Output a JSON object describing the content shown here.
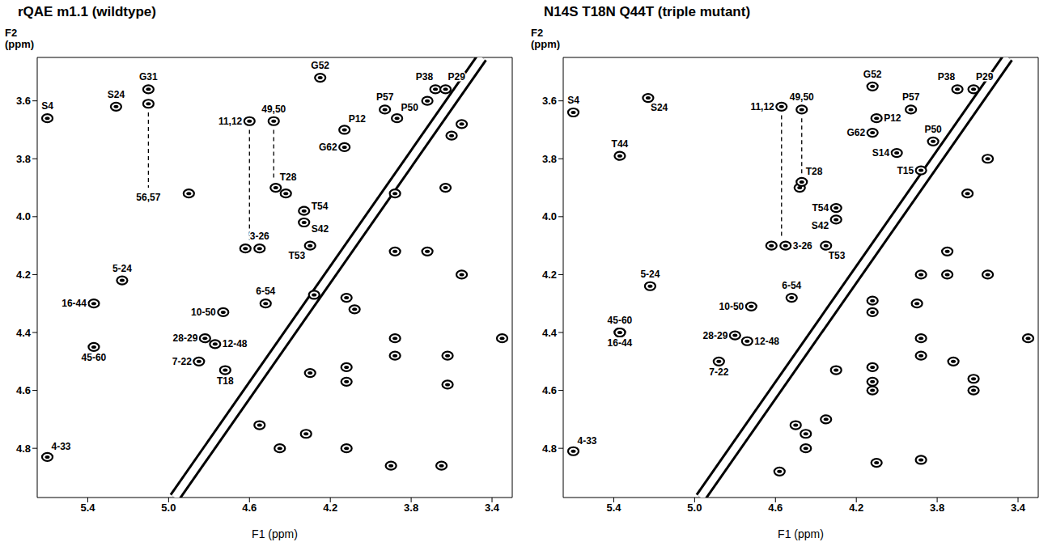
{
  "chart_data": [
    {
      "type": "scatter",
      "title": "rQAE m1.1 (wildtype)",
      "x_label": "F1 (ppm)",
      "y_label": "F2 (ppm)",
      "xlim": [
        5.65,
        3.3
      ],
      "ylim": [
        4.97,
        3.45
      ],
      "xticks": [
        5.4,
        {
          "value": 5,
          "label": "5.0"
        },
        4.6,
        4.2,
        3.8,
        3.4
      ],
      "yticks": [
        3.6,
        3.8,
        {
          "value": 4,
          "label": "4.0"
        },
        4.2,
        4.4,
        4.6,
        4.8
      ],
      "series": [
        {
          "type": "line",
          "line_style": "solid",
          "color": "#000000",
          "x": [
            4.97,
            3.45
          ],
          "y": [
            4.97,
            3.45
          ]
        },
        {
          "type": "line",
          "line_style": "dashed",
          "color": "#000000",
          "x": [
            5.1,
            5.1
          ],
          "y": [
            3.64,
            3.9
          ]
        },
        {
          "type": "line",
          "line_style": "dashed",
          "color": "#000000",
          "x": [
            4.6,
            4.6
          ],
          "y": [
            3.7,
            4.08
          ]
        },
        {
          "type": "line",
          "line_style": "dashed",
          "color": "#000000",
          "x": [
            4.48,
            4.48
          ],
          "y": [
            3.7,
            3.87
          ]
        },
        {
          "type": "scatter",
          "marker": "ellipse",
          "color": "#000000",
          "x": [
            4.9,
            4.42,
            4.28,
            4.12,
            4.08,
            3.88,
            3.88,
            3.62,
            3.62,
            4.3,
            4.12,
            4.12,
            3.88,
            3.72,
            3.55,
            3.88,
            3.6,
            3.55,
            3.63,
            4.55,
            4.45,
            4.32,
            4.12,
            3.9,
            3.65,
            3.35,
            4.62,
            3.72
          ],
          "y": [
            3.92,
            3.92,
            4.27,
            4.28,
            4.32,
            4.42,
            4.48,
            4.48,
            4.58,
            4.54,
            4.52,
            4.57,
            4.12,
            4.12,
            4.2,
            3.92,
            3.72,
            3.68,
            3.9,
            4.72,
            4.8,
            4.75,
            4.8,
            4.86,
            4.86,
            4.42,
            4.11,
            3.6
          ]
        },
        {
          "type": "scatter",
          "marker": "ellipse",
          "color": "#000000",
          "x": [
            5.6,
            5.26,
            5.1,
            5.1,
            4.6,
            4.48,
            4.47,
            4.55,
            4.52,
            4.73,
            4.82,
            4.77,
            4.85,
            4.72,
            5.37,
            5.37,
            5.23,
            5.6,
            4.25,
            4.13,
            4.13,
            4.33,
            4.33,
            4.3,
            3.93,
            3.87,
            3.68,
            3.63
          ],
          "y": [
            3.66,
            3.62,
            3.56,
            3.61,
            3.67,
            3.67,
            3.9,
            4.11,
            4.3,
            4.33,
            4.42,
            4.44,
            4.5,
            4.53,
            4.3,
            4.45,
            4.22,
            4.83,
            3.52,
            3.7,
            3.76,
            3.98,
            4.02,
            4.1,
            3.63,
            3.66,
            3.56,
            3.56
          ],
          "labels": [
            "S4",
            "S24",
            "G31",
            "56,57",
            "11,12",
            "49,50",
            "T28",
            "3-26",
            "6-54",
            "10-50",
            "28-29",
            "12-48",
            "7-22",
            "T18",
            "16-44",
            "45-60",
            "5-24",
            "4-33",
            "G52",
            "P12",
            "G62",
            "T54",
            "S42",
            "T53",
            "P57",
            "P50",
            "P38",
            "P29"
          ]
        }
      ]
    },
    {
      "type": "scatter",
      "title": "N14S T18N Q44T (triple mutant)",
      "x_label": "F1 (ppm)",
      "y_label": "F2 (ppm)",
      "xlim": [
        5.65,
        3.3
      ],
      "ylim": [
        4.97,
        3.45
      ],
      "xticks": [
        5.4,
        {
          "value": 5,
          "label": "5.0"
        },
        4.6,
        4.2,
        3.8,
        3.4
      ],
      "yticks": [
        3.6,
        3.8,
        {
          "value": 4,
          "label": "4.0"
        },
        4.2,
        4.4,
        4.6,
        4.8
      ],
      "series": [
        {
          "type": "line",
          "line_style": "solid",
          "color": "#000000",
          "x": [
            4.97,
            3.45
          ],
          "y": [
            4.97,
            3.45
          ]
        },
        {
          "type": "line",
          "line_style": "dashed",
          "color": "#000000",
          "x": [
            4.57,
            4.57
          ],
          "y": [
            3.65,
            4.07
          ]
        },
        {
          "type": "line",
          "line_style": "dashed",
          "color": "#000000",
          "x": [
            4.47,
            4.47
          ],
          "y": [
            3.66,
            3.85
          ]
        },
        {
          "type": "scatter",
          "marker": "ellipse",
          "color": "#000000",
          "x": [
            3.88,
            3.75,
            3.55,
            4.12,
            4.12,
            3.9,
            3.72,
            3.88,
            3.88,
            3.62,
            3.62,
            4.3,
            4.12,
            4.12,
            4.12,
            3.75,
            4.45,
            4.35,
            4.45,
            4.1,
            3.88,
            3.35,
            4.62,
            4.48,
            3.65,
            3.55,
            4.58,
            4.5
          ],
          "y": [
            4.2,
            4.2,
            4.2,
            4.33,
            4.29,
            4.3,
            4.5,
            4.42,
            4.48,
            4.56,
            4.6,
            4.53,
            4.52,
            4.57,
            4.6,
            4.12,
            4.75,
            4.7,
            4.8,
            4.85,
            4.84,
            4.42,
            4.1,
            3.9,
            3.92,
            3.8,
            4.88,
            4.72
          ]
        },
        {
          "type": "scatter",
          "marker": "ellipse",
          "color": "#000000",
          "x": [
            5.6,
            5.23,
            5.37,
            4.57,
            4.47,
            4.47,
            4.0,
            3.88,
            4.12,
            3.93,
            3.7,
            3.62,
            3.82,
            4.1,
            4.12,
            4.3,
            4.3,
            4.35,
            4.55,
            5.22,
            4.52,
            4.72,
            5.37,
            5.37,
            4.8,
            4.74,
            4.88,
            5.6
          ],
          "y": [
            3.64,
            3.59,
            3.79,
            3.62,
            3.63,
            3.88,
            3.78,
            3.84,
            3.55,
            3.63,
            3.56,
            3.56,
            3.74,
            3.66,
            3.71,
            3.97,
            4.01,
            4.1,
            4.1,
            4.24,
            4.28,
            4.31,
            4.4,
            4.4,
            4.41,
            4.43,
            4.5,
            4.81
          ],
          "labels": [
            "S4",
            "S24",
            "T44",
            "11,12",
            "49,50",
            "T28",
            "S14",
            "T15",
            "G52",
            "P57",
            "P38",
            "P29",
            "P50",
            "P12",
            "G62",
            "T54",
            "S42",
            "T53",
            "3-26",
            "5-24",
            "6-54",
            "10-50",
            "45-60",
            "16-44",
            "28-29",
            "12-48",
            "7-22",
            "4-33"
          ]
        }
      ]
    }
  ]
}
